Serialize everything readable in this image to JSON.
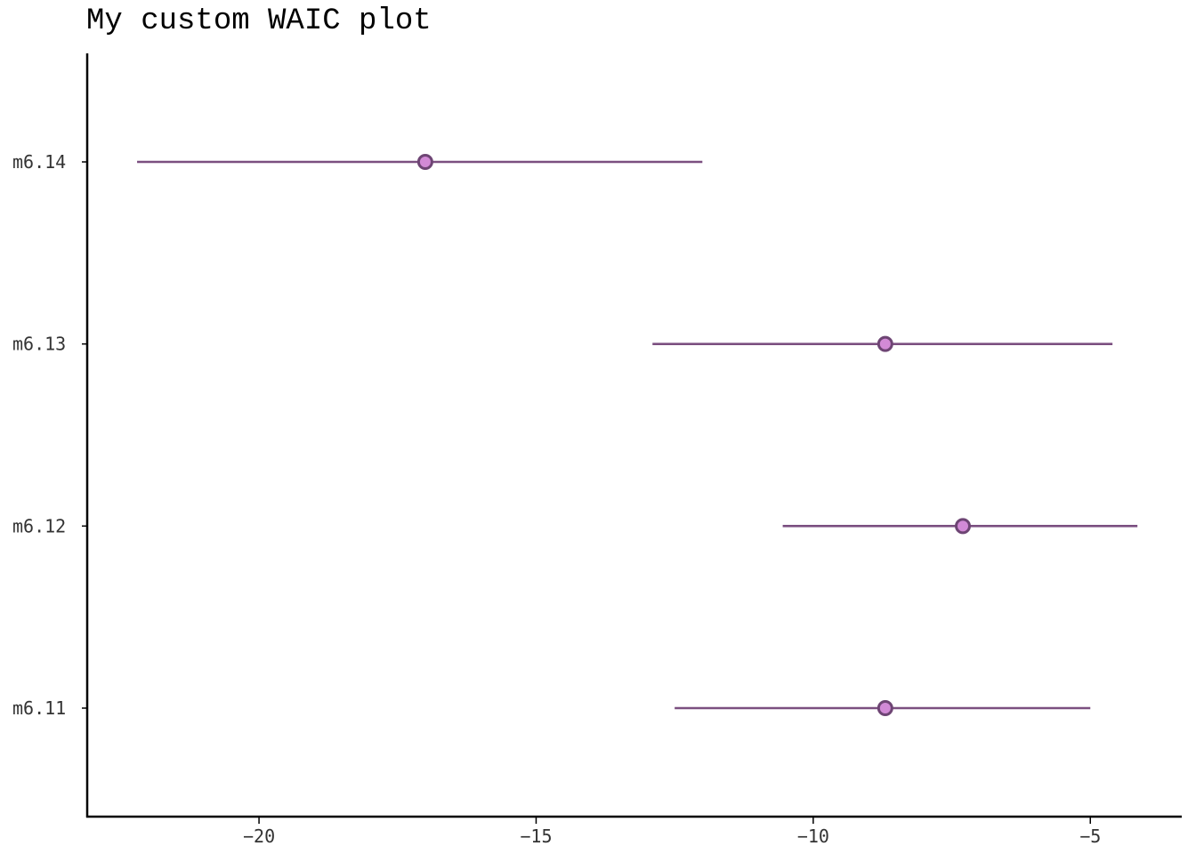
{
  "chart_data": {
    "type": "pointrange",
    "title": "My custom WAIC plot",
    "xlabel": "",
    "ylabel": "",
    "xlim": [
      -23.1,
      -3.35
    ],
    "x_ticks": [
      -20,
      -15,
      -10,
      -5
    ],
    "x_tick_labels": [
      "−20",
      "−15",
      "−10",
      "−5"
    ],
    "categories": [
      "m6.11",
      "m6.12",
      "m6.13",
      "m6.14"
    ],
    "points": [
      {
        "model": "m6.11",
        "estimate": -8.7,
        "lower": -12.5,
        "upper": -5.0
      },
      {
        "model": "m6.12",
        "estimate": -7.3,
        "lower": -10.55,
        "upper": -4.15
      },
      {
        "model": "m6.13",
        "estimate": -8.7,
        "lower": -12.9,
        "upper": -4.6
      },
      {
        "model": "m6.14",
        "estimate": -17.0,
        "lower": -22.2,
        "upper": -12.0
      }
    ],
    "grid": false,
    "legend": "none",
    "colors": {
      "line": "#7b4f80",
      "point_fill": "#d28ad6",
      "point_stroke": "#6e4574",
      "axis": "#000000",
      "tick_text": "#333333"
    }
  }
}
